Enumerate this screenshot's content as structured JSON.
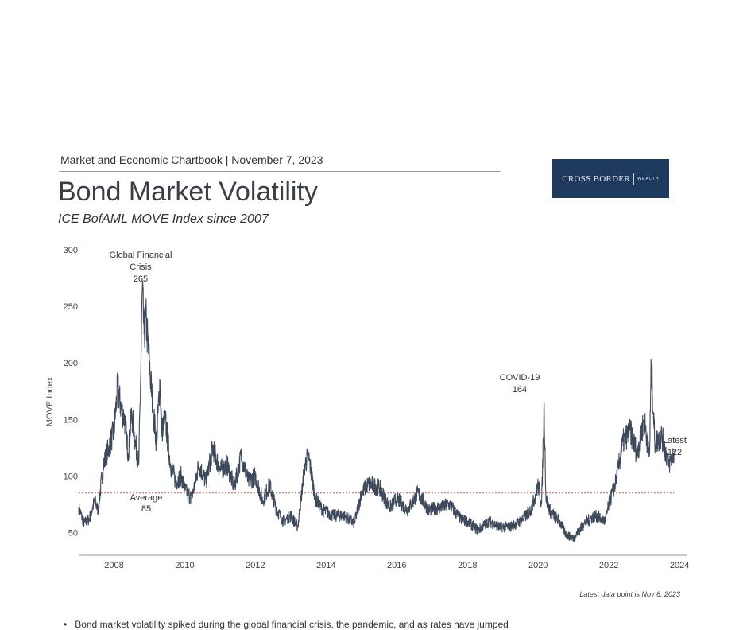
{
  "header": {
    "line": "Market and Economic Chartbook | November 7, 2023",
    "title": "Bond Market Volatility",
    "subtitle": "ICE BofAML MOVE Index since 2007"
  },
  "logo": {
    "name": "CROSS BORDER",
    "tag": "WEALTH"
  },
  "footnote": "Latest data point is Nov 6, 2023",
  "bullets": [
    "Bond market volatility spiked during the global financial crisis, the pandemic, and as rates have jumped"
  ],
  "chart_data": {
    "type": "line",
    "title": "",
    "xlabel": "",
    "ylabel": "MOVE Index",
    "xlim": [
      2007.0,
      2024.2
    ],
    "ylim": [
      30,
      300
    ],
    "x_ticks": [
      "2008",
      "2010",
      "2012",
      "2014",
      "2016",
      "2018",
      "2020",
      "2022",
      "2024"
    ],
    "y_ticks": [
      "300",
      "250",
      "200",
      "150",
      "100",
      "50"
    ],
    "grid": false,
    "line_color": "#3e4a5c",
    "average_color": "#d9534f",
    "series": [
      {
        "name": "",
        "x": [
          2007.0,
          2007.15,
          2007.3,
          2007.45,
          2007.55,
          2007.7,
          2007.85,
          2008.0,
          2008.1,
          2008.2,
          2008.3,
          2008.4,
          2008.5,
          2008.6,
          2008.7,
          2008.75,
          2008.8,
          2008.85,
          2008.9,
          2009.0,
          2009.1,
          2009.2,
          2009.3,
          2009.35,
          2009.45,
          2009.6,
          2009.75,
          2009.9,
          2010.0,
          2010.2,
          2010.4,
          2010.6,
          2010.8,
          2011.0,
          2011.2,
          2011.4,
          2011.6,
          2011.8,
          2012.0,
          2012.2,
          2012.4,
          2012.6,
          2012.8,
          2013.0,
          2013.2,
          2013.4,
          2013.5,
          2013.7,
          2013.9,
          2014.2,
          2014.5,
          2014.8,
          2015.0,
          2015.2,
          2015.5,
          2015.8,
          2016.0,
          2016.3,
          2016.6,
          2016.9,
          2017.2,
          2017.5,
          2017.8,
          2018.0,
          2018.3,
          2018.6,
          2018.9,
          2019.2,
          2019.5,
          2019.8,
          2020.0,
          2020.1,
          2020.17,
          2020.22,
          2020.35,
          2020.6,
          2020.8,
          2021.0,
          2021.3,
          2021.6,
          2021.9,
          2022.0,
          2022.2,
          2022.4,
          2022.6,
          2022.8,
          2023.0,
          2023.15,
          2023.2,
          2023.3,
          2023.5,
          2023.7,
          2023.85
        ],
        "y": [
          72,
          58,
          62,
          78,
          70,
          110,
          125,
          140,
          178,
          160,
          150,
          120,
          155,
          130,
          110,
          180,
          265,
          225,
          240,
          200,
          160,
          130,
          185,
          140,
          150,
          110,
          95,
          100,
          88,
          80,
          110,
          95,
          125,
          105,
          110,
          90,
          118,
          95,
          100,
          78,
          92,
          70,
          60,
          65,
          55,
          110,
          118,
          80,
          70,
          65,
          65,
          58,
          85,
          93,
          90,
          72,
          80,
          70,
          85,
          70,
          72,
          75,
          62,
          60,
          52,
          60,
          55,
          55,
          60,
          70,
          92,
          75,
          164,
          80,
          68,
          60,
          48,
          45,
          58,
          65,
          60,
          75,
          95,
          130,
          140,
          120,
          150,
          118,
          198,
          130,
          135,
          110,
          122
        ]
      }
    ],
    "average": {
      "value": 85,
      "label": "Average",
      "value_label": "85"
    },
    "annotations": [
      {
        "label": [
          "Global Financial",
          "Crisis",
          "265"
        ],
        "x": 2008.8,
        "y": 265
      },
      {
        "label": [
          "COVID-19",
          "164"
        ],
        "x": 2020.17,
        "y": 164
      },
      {
        "label": [
          "Latest",
          "122"
        ],
        "x": 2023.85,
        "y": 122
      }
    ]
  }
}
